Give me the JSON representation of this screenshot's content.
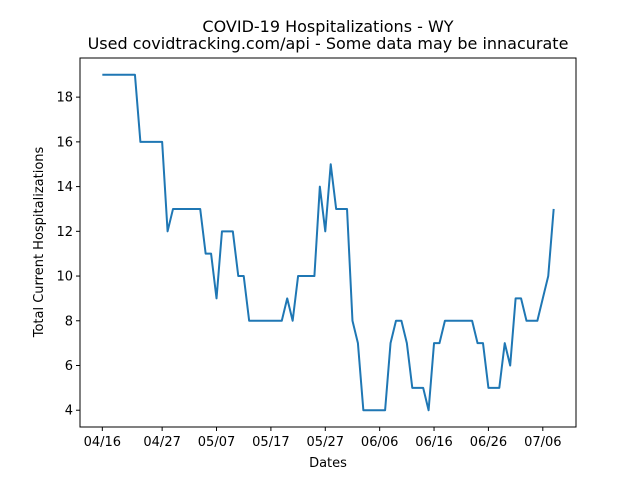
{
  "chart_data": {
    "type": "line",
    "title": "COVID-19 Hospitalizations - WY",
    "subtitle": "Used covidtracking.com/api - Some data may be innacurate",
    "xlabel": "Dates",
    "ylabel": "Total Current Hospitalizations",
    "x_tick_labels": [
      "04/16",
      "04/27",
      "05/07",
      "05/17",
      "05/27",
      "06/06",
      "06/16",
      "06/26",
      "07/06"
    ],
    "y_ticks": [
      4,
      6,
      8,
      10,
      12,
      14,
      16,
      18
    ],
    "ylim": [
      3.25,
      19.75
    ],
    "grid": false,
    "legend": "none",
    "line_color": "#1f77b4",
    "x_dates": [
      "2020-04-16",
      "2020-04-17",
      "2020-04-18",
      "2020-04-19",
      "2020-04-20",
      "2020-04-21",
      "2020-04-22",
      "2020-04-23",
      "2020-04-24",
      "2020-04-25",
      "2020-04-26",
      "2020-04-27",
      "2020-04-28",
      "2020-04-29",
      "2020-04-30",
      "2020-05-01",
      "2020-05-02",
      "2020-05-03",
      "2020-05-04",
      "2020-05-05",
      "2020-05-06",
      "2020-05-07",
      "2020-05-08",
      "2020-05-09",
      "2020-05-10",
      "2020-05-11",
      "2020-05-12",
      "2020-05-13",
      "2020-05-14",
      "2020-05-15",
      "2020-05-16",
      "2020-05-17",
      "2020-05-18",
      "2020-05-19",
      "2020-05-20",
      "2020-05-21",
      "2020-05-22",
      "2020-05-23",
      "2020-05-24",
      "2020-05-25",
      "2020-05-26",
      "2020-05-27",
      "2020-05-28",
      "2020-05-29",
      "2020-05-30",
      "2020-05-31",
      "2020-06-01",
      "2020-06-02",
      "2020-06-03",
      "2020-06-04",
      "2020-06-05",
      "2020-06-06",
      "2020-06-07",
      "2020-06-08",
      "2020-06-09",
      "2020-06-10",
      "2020-06-11",
      "2020-06-12",
      "2020-06-13",
      "2020-06-14",
      "2020-06-15",
      "2020-06-16",
      "2020-06-17",
      "2020-06-18",
      "2020-06-19",
      "2020-06-20",
      "2020-06-21",
      "2020-06-22",
      "2020-06-23",
      "2020-06-24",
      "2020-06-25",
      "2020-06-26",
      "2020-06-27",
      "2020-06-28",
      "2020-06-29",
      "2020-06-30",
      "2020-07-01",
      "2020-07-02",
      "2020-07-03",
      "2020-07-04",
      "2020-07-05",
      "2020-07-06",
      "2020-07-07",
      "2020-07-08"
    ],
    "values": [
      19,
      19,
      19,
      19,
      19,
      19,
      19,
      16,
      16,
      16,
      16,
      16,
      12,
      13,
      13,
      13,
      13,
      13,
      13,
      11,
      11,
      9,
      12,
      12,
      12,
      10,
      10,
      8,
      8,
      8,
      8,
      8,
      8,
      8,
      9,
      8,
      10,
      10,
      10,
      10,
      14,
      12,
      15,
      13,
      13,
      13,
      8,
      7,
      4,
      4,
      4,
      4,
      4,
      7,
      8,
      8,
      7,
      5,
      5,
      5,
      4,
      7,
      7,
      8,
      8,
      8,
      8,
      8,
      8,
      7,
      7,
      5,
      5,
      5,
      7,
      6,
      9,
      9,
      8,
      8,
      8,
      9,
      10,
      13
    ]
  }
}
